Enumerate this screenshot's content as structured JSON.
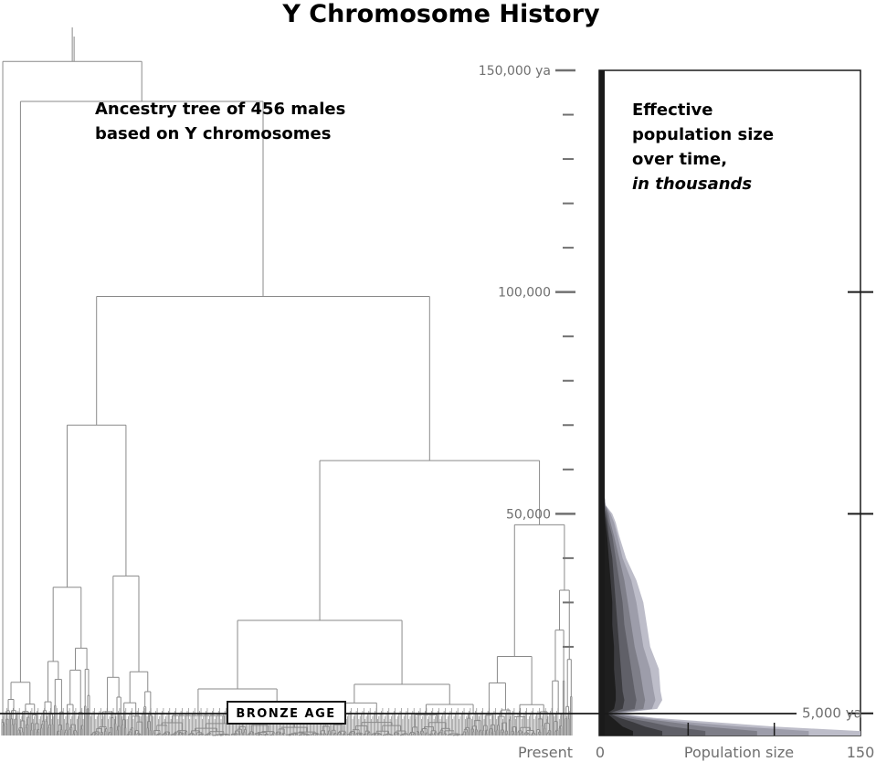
{
  "title": "Y Chromosome History",
  "tree_label_lines": [
    "Ancestry tree of 456 males",
    "based on Y chromosomes"
  ],
  "pop_label_lines": [
    "Effective",
    "population size",
    "over time,"
  ],
  "pop_label_italic": "in thousands",
  "bronze_age_label": "BRONZE AGE",
  "colors": {
    "bands": [
      "#bdbdc9",
      "#9d9daa",
      "#7e7e88",
      "#606068",
      "#3c3c40",
      "#1e1e1e"
    ],
    "axis": "#707070",
    "tree": "#8a8a8a"
  },
  "chart_data": [
    {
      "type": "tree",
      "title": "Ancestry tree of 456 males based on Y chromosomes",
      "leaves": 456,
      "time_axis": {
        "unit": "years ago",
        "range": [
          0,
          155000
        ],
        "major_ticks": [
          150000,
          100000,
          50000
        ],
        "major_tick_labels": [
          "150,000 ya",
          "100,000",
          "50,000"
        ],
        "minor_ticks": [
          140000,
          130000,
          120000,
          110000,
          90000,
          80000,
          70000,
          60000,
          40000,
          30000,
          20000
        ],
        "bottom_label": "Present"
      }
    },
    {
      "type": "area",
      "title": "Effective population size over time, in thousands",
      "xlabel": "Population size",
      "x_tick_labels": [
        "0",
        "150"
      ],
      "xlim": [
        0,
        150
      ],
      "y_unit": "years ago",
      "ylim": [
        0,
        150000
      ],
      "y_ticks_right": [
        100000,
        50000,
        5000
      ],
      "y_tick_labels_right": [
        "",
        "",
        "5,000 ya"
      ],
      "bronze_age_ya": 5000,
      "y_values": [
        1000,
        2000,
        3000,
        4000,
        5000,
        6000,
        8000,
        10000,
        15000,
        20000,
        25000,
        30000,
        35000,
        40000,
        45000,
        48000,
        50000,
        52000,
        56000,
        60000,
        64000,
        67000
      ],
      "series": [
        {
          "values": [
            150,
            100,
            65,
            30,
            10,
            32,
            35,
            34,
            33,
            28,
            26,
            24,
            20,
            14,
            10,
            8,
            6,
            2,
            1,
            0.5,
            0.3,
            0
          ]
        },
        {
          "values": [
            120,
            80,
            50,
            25,
            8,
            29,
            31,
            30,
            28,
            24,
            22,
            20,
            17,
            12,
            9,
            7,
            5,
            2,
            1,
            0.5,
            0.3,
            0
          ]
        },
        {
          "values": [
            90,
            60,
            40,
            20,
            6,
            24,
            25,
            24,
            22,
            19,
            17,
            15,
            13,
            10,
            7,
            5,
            4,
            2,
            1,
            0.5,
            0.3,
            0
          ]
        },
        {
          "values": [
            60,
            40,
            28,
            14,
            5,
            19,
            20,
            19,
            17,
            15,
            13,
            12,
            10,
            8,
            6,
            4,
            3,
            1.5,
            0.8,
            0.4,
            0.2,
            0
          ]
        },
        {
          "values": [
            35,
            25,
            18,
            10,
            4,
            12,
            13,
            12,
            11,
            10,
            9,
            8,
            7,
            6,
            4,
            3,
            2,
            1,
            0.6,
            0.3,
            0.2,
            0
          ]
        },
        {
          "values": [
            18,
            12,
            9,
            6,
            3,
            7,
            8,
            8,
            7,
            7,
            6,
            6,
            5,
            4,
            3,
            2,
            1.5,
            0.8,
            0.5,
            0.3,
            0.2,
            0
          ]
        }
      ]
    }
  ]
}
